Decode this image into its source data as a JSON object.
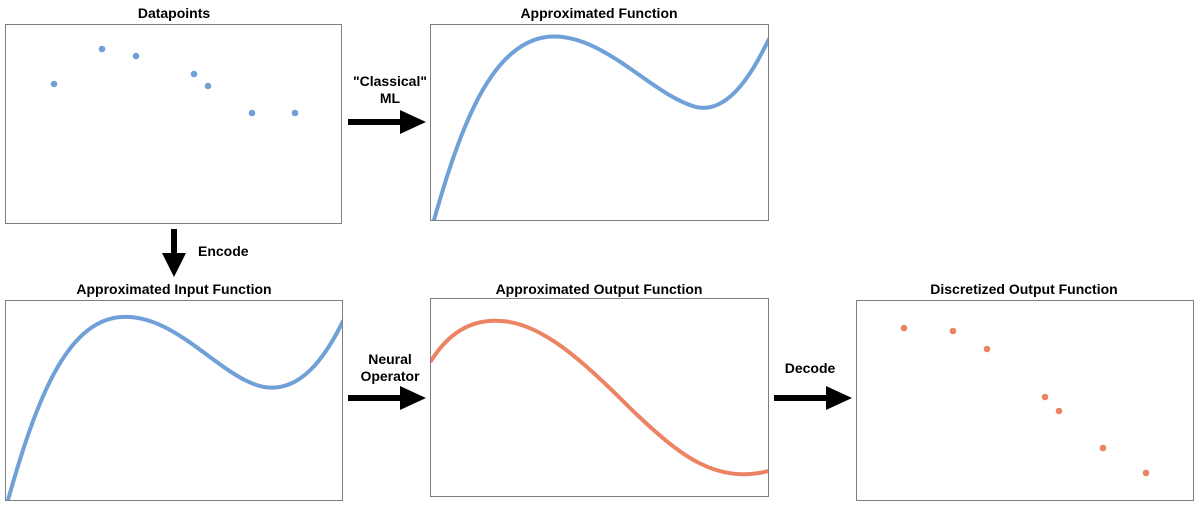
{
  "panels": {
    "datapoints": {
      "title": "Datapoints"
    },
    "approx_function": {
      "title": "Approximated Function"
    },
    "approx_input": {
      "title": "Approximated Input Function"
    },
    "approx_output": {
      "title": "Approximated Output Function"
    },
    "discretized_output": {
      "title": "Discretized Output Function"
    }
  },
  "arrows": {
    "classical_ml": {
      "label": "\"Classical\"\nML"
    },
    "encode": {
      "label": "Encode"
    },
    "neural_operator": {
      "label": "Neural\nOperator"
    },
    "decode": {
      "label": "Decode"
    }
  },
  "colors": {
    "blue": "#6fa0d8",
    "orange": "#ec8363",
    "arrow": "#000000",
    "border": "#7f7f7f"
  }
}
